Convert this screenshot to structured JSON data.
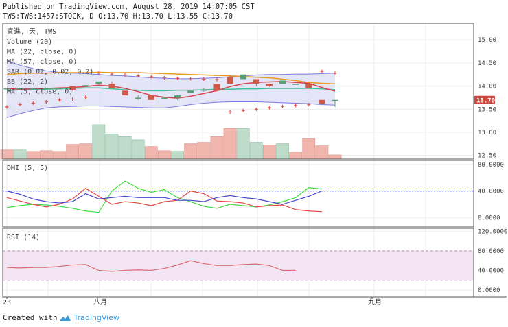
{
  "header": {
    "published": "Published on TradingView.com, August 28, 2019 14:07:05 CST",
    "ohlc": "TWS:TWS:1457:STOCK, D O:13.70 H:13.70 L:13.55 C:13.70"
  },
  "legend": {
    "symbol": "宜進, 天, TWS",
    "items": [
      "Volume (20)",
      "MA (22, close, 0)",
      "MA (57, close, 0)",
      "SAR (0.02, 0.02, 0.2)",
      "BB (22, 2)",
      "MA (5, close, 0)"
    ]
  },
  "price_label": "13.70",
  "footer": {
    "created_with": "Created with",
    "brand": "TradingView"
  },
  "colors": {
    "up": "#5a9e77",
    "down": "#d05a4a",
    "grid": "#eeeeee",
    "sar": "#e4504a",
    "bb_fill": "#dcdcf5",
    "bb_line": "#7a7ae0",
    "ma22": "#e89a1e",
    "ma57": "#3fbf9a",
    "ma5": "#d9414b"
  },
  "chart_data": [
    {
      "type": "candlestick",
      "title": "宜進, 天, TWS",
      "y_ticks": [
        12.5,
        13.0,
        13.5,
        14.0,
        14.5,
        15.0
      ],
      "ylim": [
        12.42,
        15.36
      ],
      "x_labels": [
        "23",
        "八月",
        "九月"
      ],
      "candles": [
        {
          "o": 13.95,
          "h": 13.95,
          "l": 13.95,
          "c": 13.95
        },
        {
          "o": 13.95,
          "h": 13.95,
          "l": 13.95,
          "c": 13.95
        },
        {
          "o": 13.95,
          "h": 13.95,
          "l": 13.95,
          "c": 13.95
        },
        {
          "o": 13.95,
          "h": 13.95,
          "l": 13.95,
          "c": 13.95
        },
        {
          "o": 13.95,
          "h": 13.95,
          "l": 13.95,
          "c": 13.95
        },
        {
          "o": 14.0,
          "h": 14.0,
          "l": 13.9,
          "c": 13.92
        },
        {
          "o": 14.0,
          "h": 14.02,
          "l": 13.98,
          "c": 14.02
        },
        {
          "o": 14.05,
          "h": 14.1,
          "l": 14.04,
          "c": 14.1
        },
        {
          "o": 14.05,
          "h": 14.1,
          "l": 13.95,
          "c": 13.95
        },
        {
          "o": 13.9,
          "h": 13.9,
          "l": 13.8,
          "c": 13.8
        },
        {
          "o": 13.75,
          "h": 13.8,
          "l": 13.7,
          "c": 13.75
        },
        {
          "o": 13.8,
          "h": 13.8,
          "l": 13.7,
          "c": 13.7
        },
        {
          "o": 13.75,
          "h": 13.75,
          "l": 13.75,
          "c": 13.75
        },
        {
          "o": 13.75,
          "h": 13.8,
          "l": 13.7,
          "c": 13.8
        },
        {
          "o": 13.85,
          "h": 13.9,
          "l": 13.85,
          "c": 13.9
        },
        {
          "o": 13.9,
          "h": 13.95,
          "l": 13.88,
          "c": 13.92
        },
        {
          "o": 14.05,
          "h": 14.05,
          "l": 13.88,
          "c": 13.9
        },
        {
          "o": 14.2,
          "h": 14.22,
          "l": 14.05,
          "c": 14.05
        },
        {
          "o": 14.15,
          "h": 14.25,
          "l": 14.15,
          "c": 14.25
        },
        {
          "o": 14.15,
          "h": 14.15,
          "l": 14.0,
          "c": 14.05
        },
        {
          "o": 14.05,
          "h": 14.05,
          "l": 13.98,
          "c": 14.0
        },
        {
          "o": 14.05,
          "h": 14.12,
          "l": 14.05,
          "c": 14.12
        },
        {
          "o": 14.05,
          "h": 14.05,
          "l": 14.05,
          "c": 14.05
        },
        {
          "o": 14.05,
          "h": 14.05,
          "l": 13.95,
          "c": 13.95
        },
        {
          "o": 13.7,
          "h": 13.7,
          "l": 13.62,
          "c": 13.62
        },
        {
          "o": 13.7,
          "h": 13.7,
          "l": 13.55,
          "c": 13.7
        }
      ],
      "volume": [
        26,
        26,
        22,
        24,
        22,
        42,
        44,
        98,
        72,
        64,
        55,
        36,
        24,
        22,
        44,
        48,
        64,
        88,
        88,
        48,
        40,
        44,
        20,
        58,
        38,
        12
      ],
      "volume_up": [
        false,
        true,
        false,
        false,
        false,
        false,
        false,
        true,
        true,
        true,
        true,
        false,
        false,
        true,
        false,
        false,
        false,
        false,
        true,
        true,
        false,
        true,
        false,
        false,
        false,
        false
      ],
      "ma22": [
        14.25,
        14.27,
        14.28,
        14.28,
        14.29,
        14.29,
        14.29,
        14.3,
        14.29,
        14.29,
        14.29,
        14.28,
        14.27,
        14.26,
        14.25,
        14.24,
        14.23,
        14.22,
        14.21,
        14.19,
        14.18,
        14.15,
        14.12,
        14.08,
        14.06,
        14.05
      ],
      "ma57": [
        13.9,
        13.92,
        13.92,
        13.93,
        13.94,
        13.95,
        13.96,
        13.96,
        13.94,
        13.92,
        13.91,
        13.9,
        13.9,
        13.91,
        13.91,
        13.92,
        13.93,
        13.93,
        13.94,
        13.94,
        13.95,
        13.95,
        13.95,
        13.95,
        13.94,
        13.92
      ],
      "ma5": [
        13.95,
        13.93,
        13.94,
        13.95,
        13.96,
        13.97,
        13.99,
        14.02,
        14.0,
        13.95,
        13.88,
        13.8,
        13.76,
        13.74,
        13.78,
        13.84,
        13.9,
        13.99,
        14.05,
        14.08,
        14.09,
        14.1,
        14.08,
        14.06,
        13.97,
        13.89
      ],
      "bb_upper": [
        14.55,
        14.45,
        14.38,
        14.33,
        14.3,
        14.28,
        14.27,
        14.25,
        14.23,
        14.22,
        14.2,
        14.18,
        14.17,
        14.16,
        14.16,
        14.17,
        14.18,
        14.2,
        14.22,
        14.24,
        14.25,
        14.25,
        14.26,
        14.26,
        14.27,
        14.28
      ],
      "bb_lower": [
        13.32,
        13.4,
        13.47,
        13.53,
        13.55,
        13.56,
        13.57,
        13.57,
        13.56,
        13.55,
        13.54,
        13.53,
        13.53,
        13.56,
        13.6,
        13.63,
        13.65,
        13.66,
        13.66,
        13.66,
        13.65,
        13.64,
        13.63,
        13.62,
        13.6,
        13.59
      ],
      "sar": [
        13.55,
        13.6,
        13.63,
        13.66,
        13.7,
        13.72,
        13.76,
        14.28,
        14.26,
        14.24,
        14.22,
        14.2,
        14.18,
        14.17,
        14.16,
        14.15,
        14.14,
        13.44,
        13.47,
        13.5,
        13.53,
        13.56,
        13.58,
        13.6,
        14.32,
        14.28
      ]
    },
    {
      "type": "line",
      "title": "DMI (5, 5)",
      "y_ticks": [
        0,
        40,
        80
      ],
      "ylim": [
        -14,
        86
      ],
      "reference_line": 40,
      "series": [
        {
          "name": "+DI",
          "color": "#3cdc3c",
          "values": [
            15,
            18,
            20,
            19,
            17,
            14,
            10,
            8,
            40,
            55,
            44,
            38,
            42,
            30,
            24,
            17,
            14,
            20,
            18,
            16,
            19,
            24,
            30,
            45,
            43
          ]
        },
        {
          "name": "-DI",
          "color": "#e44444",
          "values": [
            30,
            25,
            20,
            16,
            20,
            28,
            44,
            32,
            20,
            24,
            22,
            18,
            24,
            26,
            40,
            36,
            25,
            24,
            22,
            16,
            18,
            19,
            12,
            10,
            9
          ]
        },
        {
          "name": "ADX",
          "color": "#4444cc",
          "values": [
            40,
            35,
            28,
            24,
            22,
            24,
            36,
            28,
            30,
            32,
            30,
            30,
            30,
            26,
            26,
            24,
            30,
            33,
            30,
            28,
            24,
            20,
            26,
            32,
            40
          ]
        }
      ]
    },
    {
      "type": "line",
      "title": "RSI (14)",
      "y_ticks": [
        0,
        40,
        80,
        120
      ],
      "ylim": [
        -14,
        126
      ],
      "band": [
        20,
        80
      ],
      "series": [
        {
          "name": "RSI",
          "color": "#d86a73",
          "values": [
            46,
            45,
            46,
            46,
            48,
            51,
            52,
            40,
            38,
            40,
            41,
            40,
            44,
            51,
            60,
            54,
            50,
            50,
            52,
            53,
            50,
            40,
            40
          ]
        }
      ]
    }
  ]
}
